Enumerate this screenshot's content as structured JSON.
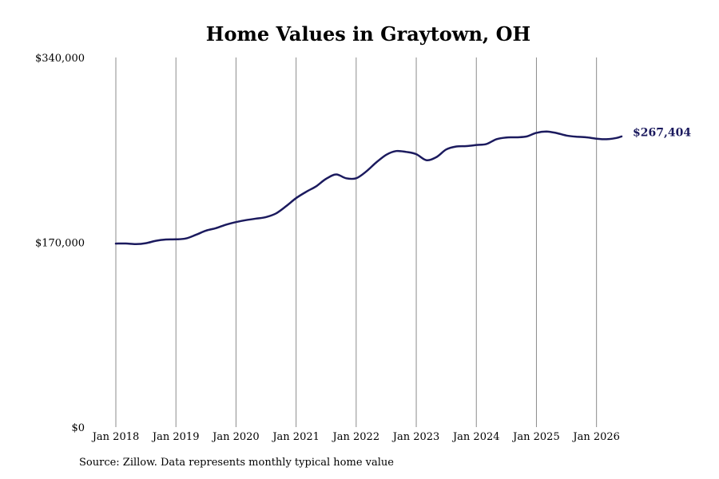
{
  "chart_data": {
    "type": "line",
    "title": "Home Values in Graytown, OH",
    "xlabel": "",
    "ylabel": "",
    "ylim": [
      0,
      340000
    ],
    "y_ticks": [
      {
        "value": 0,
        "label": "$0"
      },
      {
        "value": 170000,
        "label": "$170,000"
      },
      {
        "value": 340000,
        "label": "$340,000"
      }
    ],
    "x_ticks": [
      {
        "value": "2018-01",
        "label": "Jan 2018"
      },
      {
        "value": "2019-01",
        "label": "Jan 2019"
      },
      {
        "value": "2020-01",
        "label": "Jan 2020"
      },
      {
        "value": "2021-01",
        "label": "Jan 2021"
      },
      {
        "value": "2022-01",
        "label": "Jan 2022"
      },
      {
        "value": "2023-01",
        "label": "Jan 2023"
      },
      {
        "value": "2024-01",
        "label": "Jan 2024"
      },
      {
        "value": "2025-01",
        "label": "Jan 2025"
      },
      {
        "value": "2026-01",
        "label": "Jan 2026"
      }
    ],
    "xlim": [
      "2018-01",
      "2026-06"
    ],
    "grid": {
      "vertical": true,
      "horizontal": false
    },
    "series": [
      {
        "color": "#1b1a5e",
        "points": [
          {
            "x": "2018-01",
            "y": 168800
          },
          {
            "x": "2018-03",
            "y": 168900
          },
          {
            "x": "2018-05",
            "y": 168300
          },
          {
            "x": "2018-07",
            "y": 169200
          },
          {
            "x": "2018-09",
            "y": 171400
          },
          {
            "x": "2018-11",
            "y": 172600
          },
          {
            "x": "2019-01",
            "y": 172700
          },
          {
            "x": "2019-03",
            "y": 173500
          },
          {
            "x": "2019-05",
            "y": 176900
          },
          {
            "x": "2019-07",
            "y": 180700
          },
          {
            "x": "2019-09",
            "y": 183000
          },
          {
            "x": "2019-11",
            "y": 186200
          },
          {
            "x": "2020-01",
            "y": 188600
          },
          {
            "x": "2020-03",
            "y": 190400
          },
          {
            "x": "2020-05",
            "y": 191800
          },
          {
            "x": "2020-07",
            "y": 193200
          },
          {
            "x": "2020-09",
            "y": 196600
          },
          {
            "x": "2020-11",
            "y": 203200
          },
          {
            "x": "2021-01",
            "y": 210600
          },
          {
            "x": "2021-03",
            "y": 216400
          },
          {
            "x": "2021-05",
            "y": 221500
          },
          {
            "x": "2021-07",
            "y": 228400
          },
          {
            "x": "2021-09",
            "y": 232400
          },
          {
            "x": "2021-11",
            "y": 228900
          },
          {
            "x": "2022-01",
            "y": 228900
          },
          {
            "x": "2022-03",
            "y": 235100
          },
          {
            "x": "2022-05",
            "y": 243400
          },
          {
            "x": "2022-07",
            "y": 250500
          },
          {
            "x": "2022-09",
            "y": 253900
          },
          {
            "x": "2022-11",
            "y": 253100
          },
          {
            "x": "2023-01",
            "y": 251100
          },
          {
            "x": "2023-03",
            "y": 245600
          },
          {
            "x": "2023-05",
            "y": 248300
          },
          {
            "x": "2023-07",
            "y": 255400
          },
          {
            "x": "2023-09",
            "y": 258100
          },
          {
            "x": "2023-11",
            "y": 258500
          },
          {
            "x": "2024-01",
            "y": 259500
          },
          {
            "x": "2024-03",
            "y": 260400
          },
          {
            "x": "2024-05",
            "y": 264800
          },
          {
            "x": "2024-07",
            "y": 266400
          },
          {
            "x": "2024-09",
            "y": 266600
          },
          {
            "x": "2024-11",
            "y": 267300
          },
          {
            "x": "2025-01",
            "y": 270700
          },
          {
            "x": "2025-03",
            "y": 271900
          },
          {
            "x": "2025-05",
            "y": 270500
          },
          {
            "x": "2025-07",
            "y": 268200
          },
          {
            "x": "2025-09",
            "y": 267100
          },
          {
            "x": "2025-11",
            "y": 266600
          },
          {
            "x": "2026-01",
            "y": 265300
          },
          {
            "x": "2026-03",
            "y": 264800
          },
          {
            "x": "2026-05",
            "y": 266000
          },
          {
            "x": "2026-06",
            "y": 267404
          }
        ],
        "end_label": "$267,404"
      }
    ],
    "source": "Source: Zillow. Data represents monthly typical home value"
  }
}
